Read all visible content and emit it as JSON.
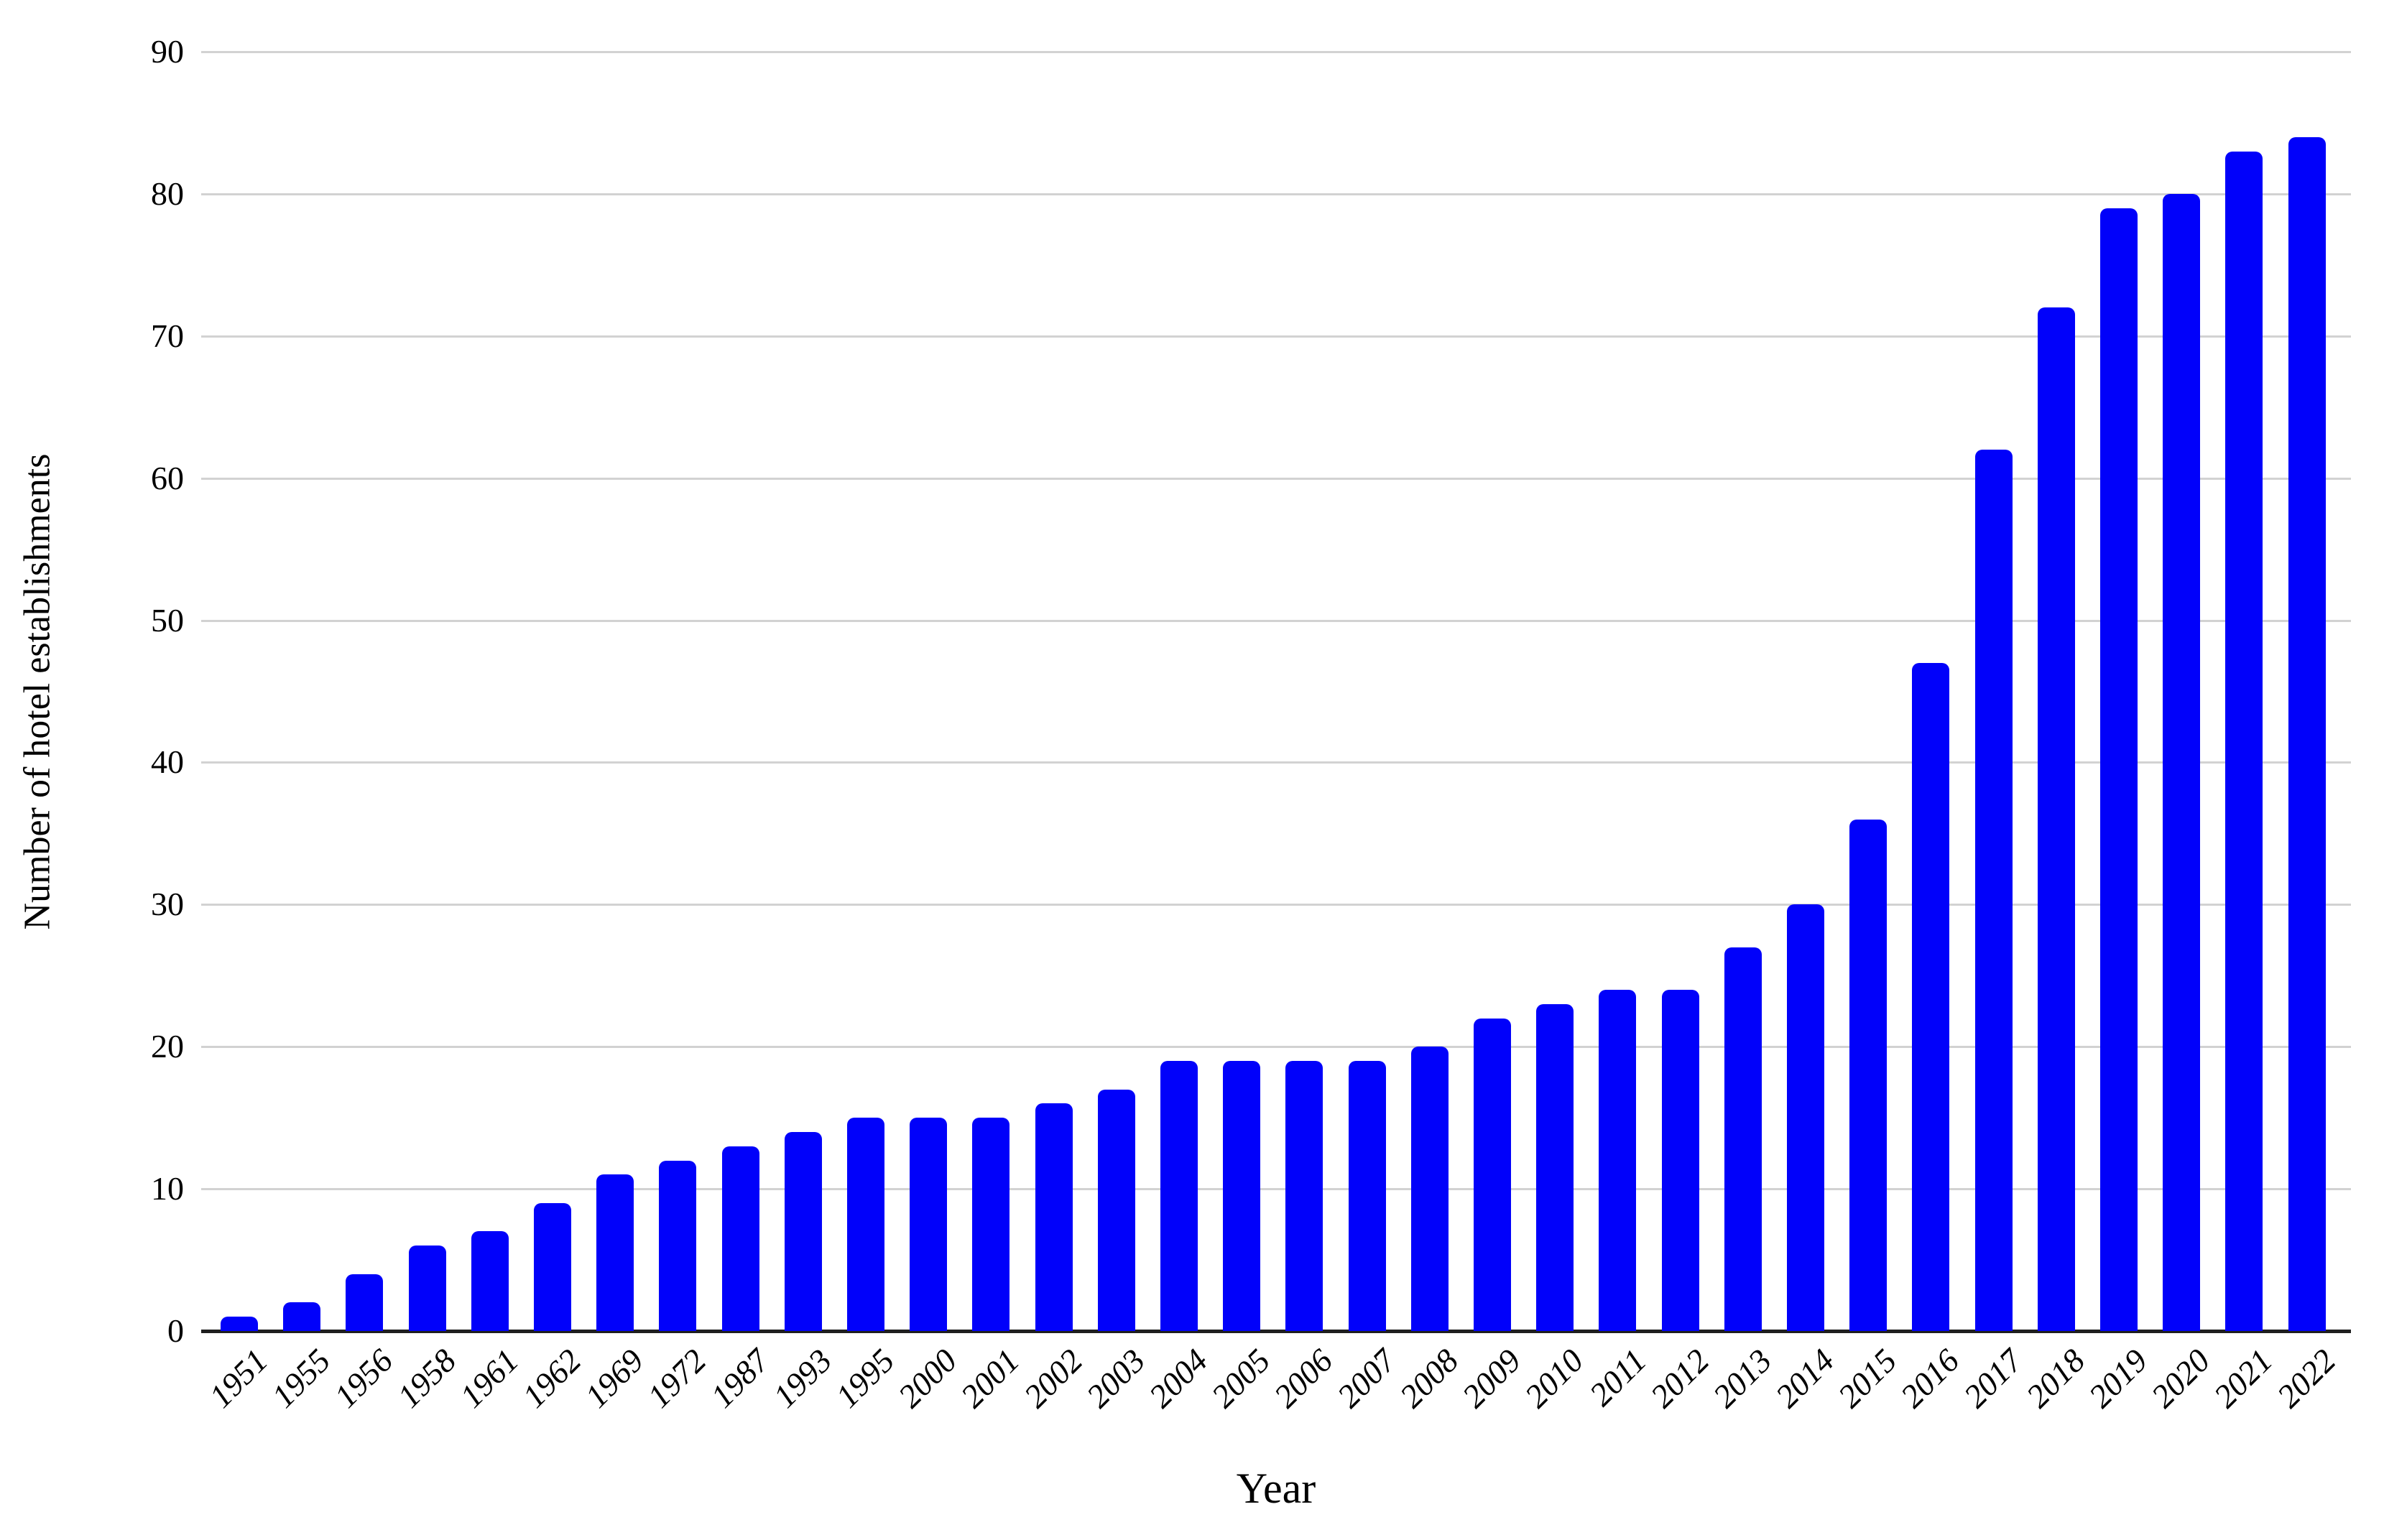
{
  "chart_data": {
    "type": "bar",
    "title": "",
    "xlabel": "Year",
    "ylabel": "Number of hotel establishments",
    "categories": [
      "1951",
      "1955",
      "1956",
      "1958",
      "1961",
      "1962",
      "1969",
      "1972",
      "1987",
      "1993",
      "1995",
      "2000",
      "2001",
      "2002",
      "2003",
      "2004",
      "2005",
      "2006",
      "2007",
      "2008",
      "2009",
      "2010",
      "2011",
      "2012",
      "2013",
      "2014",
      "2015",
      "2016",
      "2017",
      "2018",
      "2019",
      "2020",
      "2021",
      "2022"
    ],
    "values": [
      1,
      2,
      4,
      6,
      7,
      9,
      11,
      12,
      13,
      14,
      15,
      15,
      15,
      16,
      17,
      19,
      19,
      19,
      19,
      20,
      22,
      23,
      24,
      24,
      27,
      30,
      36,
      47,
      62,
      72,
      79,
      80,
      83,
      84
    ],
    "ylim": [
      0,
      90
    ],
    "yticks": [
      0,
      10,
      20,
      30,
      40,
      50,
      60,
      70,
      80,
      90
    ],
    "grid": "horizontal-gridlines-on",
    "legend": "none",
    "bar_color": "#0101FA",
    "gridline_color": "#D2D2D2",
    "axis_line_color": "#1F1F1F",
    "text_color": "#000000"
  }
}
